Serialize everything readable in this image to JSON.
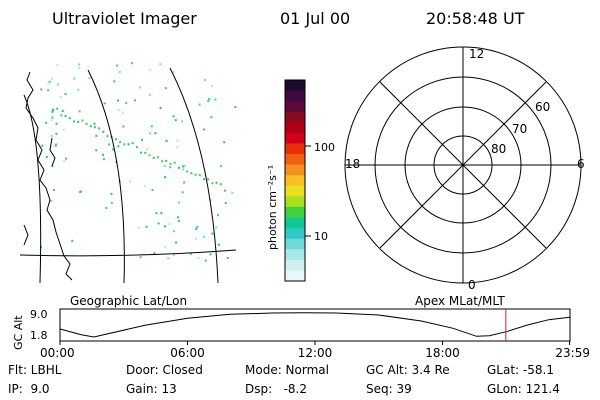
{
  "header": {
    "title": "Ultraviolet Imager",
    "date": "01 Jul 00",
    "time": "20:58:48 UT"
  },
  "colorbar": {
    "label": "photon cm⁻²s⁻¹",
    "ticks": [
      "100",
      "10"
    ],
    "colors": [
      "#1a0a2e",
      "#3d0a40",
      "#5a0a35",
      "#8a0a20",
      "#b00015",
      "#d4001a",
      "#e8300a",
      "#f06010",
      "#f89020",
      "#f8c020",
      "#e8e020",
      "#a8e020",
      "#40d040",
      "#10c890",
      "#30c8c8",
      "#70d8d8",
      "#a8e8e8",
      "#d0f0f0",
      "#e8f8f8"
    ]
  },
  "polar_plot": {
    "mlt_labels": [
      "12",
      "18",
      "6",
      "0"
    ],
    "lat_labels": [
      "60",
      "70",
      "80"
    ],
    "rings": [
      60,
      70,
      80
    ]
  },
  "map_labels": {
    "geographic": "Geographic Lat/Lon",
    "apex": "Apex MLat/MLT"
  },
  "chart_data": {
    "type": "line",
    "title": "",
    "ylabel": "GC Alt",
    "y_ticks": [
      "9.0",
      "1.8"
    ],
    "x_ticks": [
      "00:00",
      "06:00",
      "12:00",
      "18:00",
      "23:59"
    ],
    "ylim": [
      1.8,
      9.0
    ],
    "x_hours": [
      0,
      1,
      1.6,
      2,
      4,
      6,
      8,
      10,
      11.5,
      13,
      15,
      17,
      18.5,
      19.6,
      20.2,
      21,
      22,
      23,
      23.98
    ],
    "gc_alt": [
      4.2,
      2.5,
      1.8,
      2.4,
      5.3,
      7.4,
      8.6,
      9.0,
      9.1,
      9.0,
      8.4,
      6.6,
      4.4,
      2.0,
      2.2,
      3.4,
      5.4,
      7.0,
      7.7
    ],
    "current_time_marker_hours": 20.98,
    "marker_color": "#cc2222"
  },
  "status": {
    "rows": [
      [
        "Flt: LBHL",
        "Door: Closed",
        "Mode: Normal",
        "GC Alt: 3.4 Re",
        "GLat: -58.1"
      ],
      [
        "IP:  9.0",
        "Gain: 13",
        "Dsp:   -8.2",
        "Seq: 39",
        "GLon: 121.4"
      ]
    ]
  }
}
